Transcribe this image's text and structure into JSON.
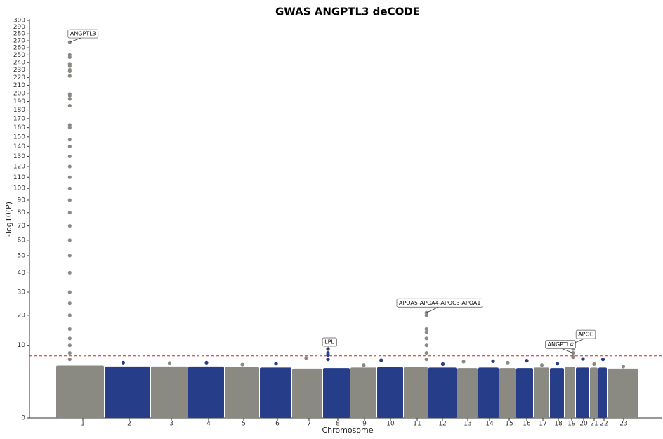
{
  "chart_data": {
    "type": "manhattan",
    "title": "GWAS ANGPTL3 deCODE",
    "x_label": "Chromosome",
    "y_label": "-log10(P)",
    "yscale": "sqrt",
    "ylim": [
      0,
      300
    ],
    "yticks": [
      0,
      10,
      20,
      30,
      40,
      50,
      60,
      70,
      80,
      90,
      100,
      110,
      120,
      130,
      140,
      150,
      160,
      170,
      180,
      190,
      200,
      210,
      220,
      230,
      240,
      250,
      260,
      270,
      280,
      290,
      300
    ],
    "threshold": 7.3,
    "threshold_color": "#d62728",
    "colors": [
      "#8a8a82",
      "#263d8a"
    ],
    "categories": [
      "1",
      "2",
      "3",
      "4",
      "5",
      "6",
      "7",
      "8",
      "9",
      "10",
      "11",
      "12",
      "13",
      "14",
      "15",
      "16",
      "17",
      "18",
      "19",
      "20",
      "21",
      "22",
      "23"
    ],
    "bulk": [
      5.2,
      5.0,
      5.0,
      5.0,
      4.9,
      4.8,
      4.6,
      4.7,
      4.8,
      4.9,
      4.9,
      4.8,
      4.7,
      4.8,
      4.7,
      4.7,
      4.8,
      4.7,
      4.9,
      4.8,
      4.8,
      4.8,
      4.6
    ],
    "values": [
      [
        268,
        250,
        247,
        238,
        235,
        230,
        228,
        222,
        199,
        197,
        193,
        185,
        163,
        160,
        147,
        140,
        130,
        120,
        110,
        100,
        90,
        80,
        70,
        60,
        50,
        40,
        30,
        25,
        20,
        15,
        12,
        10,
        8,
        6.5
      ],
      [
        5.8
      ],
      [
        5.7
      ],
      [
        5.8
      ],
      [
        5.4
      ],
      [
        5.6
      ],
      [
        6.8
      ],
      [
        9,
        8,
        7.5,
        6.5
      ],
      [
        5.3
      ],
      [
        6.3
      ],
      [
        21,
        20,
        15,
        14,
        12,
        10,
        8,
        6.5
      ],
      [
        5.5
      ],
      [
        6.0
      ],
      [
        6.1
      ],
      [
        5.8
      ],
      [
        6.2
      ],
      [
        5.3
      ],
      [
        5.6
      ],
      [
        10.5,
        9,
        8,
        7
      ],
      [
        6.6
      ],
      [
        5.5
      ],
      [
        6.5
      ],
      [
        5.0
      ]
    ],
    "annotations": [
      {
        "text": "ANGPTL3",
        "category": 0,
        "value": 268
      },
      {
        "text": "LPL",
        "category": 7,
        "value": 9
      },
      {
        "text": "APOA5-APOA4-APOC3-APOA1",
        "category": 10,
        "value": 21
      },
      {
        "text": "ANGPTL4",
        "category": 18,
        "value": 8
      },
      {
        "text": "APOE",
        "category": 18,
        "value": 10.5
      }
    ]
  }
}
